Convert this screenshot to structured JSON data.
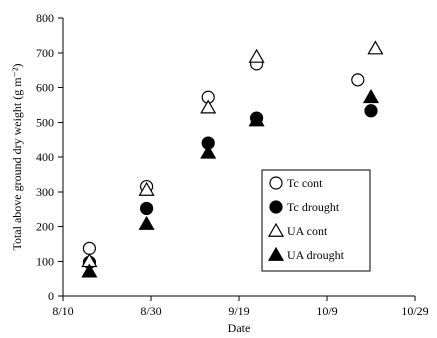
{
  "chart_data": {
    "type": "scatter",
    "title": "",
    "xlabel": "Date",
    "ylabel": "Total above ground dry weight (g m⁻²)",
    "x_ticks": [
      "8/10",
      "8/30",
      "9/19",
      "10/9",
      "10/29"
    ],
    "x_domain": [
      "2000-08-10",
      "2000-10-29"
    ],
    "y_ticks": [
      0,
      100,
      200,
      300,
      400,
      500,
      600,
      700,
      800
    ],
    "ylim": [
      0,
      800
    ],
    "legend_placement": "center-right",
    "grid": false,
    "series": [
      {
        "name": "Tc cont",
        "marker": "circle-open",
        "color": "#000000",
        "points": [
          {
            "x": "2000-08-16",
            "y": 137
          },
          {
            "x": "2000-08-29",
            "y": 315
          },
          {
            "x": "2000-09-12",
            "y": 572
          },
          {
            "x": "2000-09-23",
            "y": 668
          },
          {
            "x": "2000-10-16",
            "y": 622
          }
        ]
      },
      {
        "name": "Tc drought",
        "marker": "circle-filled",
        "color": "#000000",
        "points": [
          {
            "x": "2000-08-16",
            "y": 97
          },
          {
            "x": "2000-08-29",
            "y": 252
          },
          {
            "x": "2000-09-12",
            "y": 440
          },
          {
            "x": "2000-09-23",
            "y": 512
          },
          {
            "x": "2000-10-19",
            "y": 533
          }
        ]
      },
      {
        "name": "UA cont",
        "marker": "triangle-open",
        "color": "#000000",
        "points": [
          {
            "x": "2000-08-16",
            "y": 100
          },
          {
            "x": "2000-08-29",
            "y": 305
          },
          {
            "x": "2000-09-12",
            "y": 542
          },
          {
            "x": "2000-09-23",
            "y": 688
          },
          {
            "x": "2000-10-20",
            "y": 712
          }
        ]
      },
      {
        "name": "UA drought",
        "marker": "triangle-filled",
        "color": "#000000",
        "points": [
          {
            "x": "2000-08-16",
            "y": 70
          },
          {
            "x": "2000-08-29",
            "y": 207
          },
          {
            "x": "2000-09-12",
            "y": 412
          },
          {
            "x": "2000-09-23",
            "y": 505
          },
          {
            "x": "2000-10-19",
            "y": 572
          }
        ]
      }
    ]
  }
}
